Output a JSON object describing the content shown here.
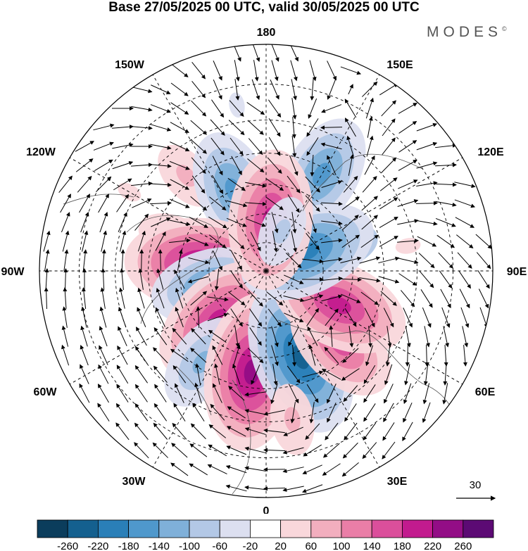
{
  "title": "Base 27/05/2025 00 UTC, valid 30/05/2025 00 UTC",
  "brand": {
    "name": "MODES",
    "mark": "©"
  },
  "map": {
    "projection": "north-polar-stereographic",
    "longitude_labels": [
      "180",
      "150E",
      "120E",
      "90E",
      "60E",
      "30E",
      "0",
      "30W",
      "60W",
      "90W",
      "120W",
      "150W"
    ],
    "wind_reference": {
      "value": "30"
    }
  },
  "colorbar": {
    "ticks": [
      "-260",
      "-220",
      "-180",
      "-140",
      "-100",
      "-60",
      "-20",
      "20",
      "60",
      "100",
      "140",
      "180",
      "220",
      "260"
    ],
    "colors": [
      "#0b3d5c",
      "#14608f",
      "#2a7fb8",
      "#4f98cc",
      "#7fb0d9",
      "#b3c8e6",
      "#dcdff0",
      "#ffffff",
      "#f9d7db",
      "#f2aebe",
      "#ea7ea7",
      "#db4f9b",
      "#c21b8e",
      "#930d86",
      "#5c0a74"
    ]
  },
  "anomalies": [
    {
      "lon": 150,
      "lat": 52,
      "value": -150
    },
    {
      "lon": 108,
      "lat": 62,
      "value": -100
    },
    {
      "lon": -140,
      "lat": 48,
      "value": 70
    },
    {
      "lon": -158,
      "lat": 60,
      "value": -160
    },
    {
      "lon": -110,
      "lat": 56,
      "value": 90
    },
    {
      "lon": -95,
      "lat": 68,
      "value": 230
    },
    {
      "lon": -75,
      "lat": 70,
      "value": -150
    },
    {
      "lon": -45,
      "lat": 66,
      "value": 210
    },
    {
      "lon": -35,
      "lat": 52,
      "value": -120
    },
    {
      "lon": -8,
      "lat": 55,
      "value": 250
    },
    {
      "lon": 22,
      "lat": 58,
      "value": -230
    },
    {
      "lon": 45,
      "lat": 54,
      "value": 160
    },
    {
      "lon": 65,
      "lat": 62,
      "value": 200
    },
    {
      "lon": 115,
      "lat": 74,
      "value": -200
    },
    {
      "lon": 175,
      "lat": 72,
      "value": 220
    },
    {
      "lon": 158,
      "lat": 75,
      "value": -70
    },
    {
      "lon": 10,
      "lat": 40,
      "value": 90
    },
    {
      "lon": -120,
      "lat": 38,
      "value": 50
    },
    {
      "lon": 100,
      "lat": 42,
      "value": 60
    },
    {
      "lon": -170,
      "lat": 35,
      "value": -50
    }
  ]
}
